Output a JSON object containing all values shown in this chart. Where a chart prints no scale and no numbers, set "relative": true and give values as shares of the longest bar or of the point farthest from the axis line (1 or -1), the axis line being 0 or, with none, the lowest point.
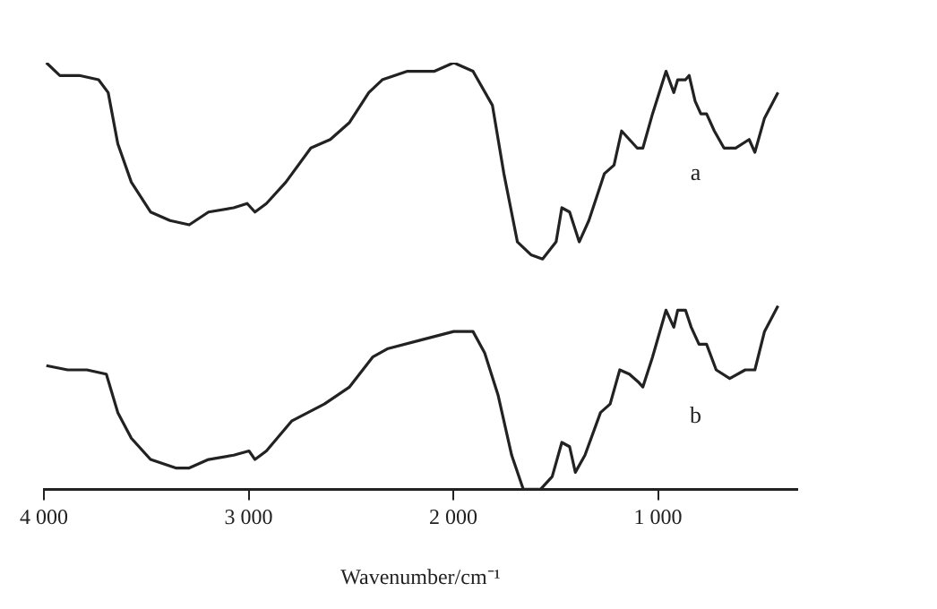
{
  "chart_data": {
    "type": "line",
    "relative": true,
    "xlabel": "Wavenumber/cm⁻¹",
    "xlim": [
      4000,
      320
    ],
    "xticks": [
      {
        "value": 4000,
        "label": "4 000"
      },
      {
        "value": 3000,
        "label": "3 000"
      },
      {
        "value": 2000,
        "label": "2 000"
      },
      {
        "value": 1000,
        "label": "1 000"
      }
    ],
    "grid": false,
    "legend": false,
    "marker": "none",
    "line_style": "solid",
    "series": [
      {
        "name": "a",
        "color": "#222222",
        "x": [
          3988,
          3922,
          3827,
          3733,
          3686,
          3639,
          3573,
          3479,
          3384,
          3290,
          3196,
          3073,
          3007,
          2969,
          2913,
          2818,
          2696,
          2601,
          2507,
          2413,
          2347,
          2224,
          2158,
          2092,
          1998,
          1904,
          1809,
          1753,
          1687,
          1621,
          1564,
          1498,
          1470,
          1432,
          1385,
          1338,
          1262,
          1215,
          1178,
          1140,
          1102,
          1074,
          1027,
          961,
          923,
          904,
          866,
          848,
          819,
          791,
          763,
          725,
          678,
          621,
          555,
          527,
          480,
          414
        ],
        "values": [
          1.0,
          0.97,
          0.97,
          0.96,
          0.93,
          0.81,
          0.72,
          0.65,
          0.63,
          0.62,
          0.65,
          0.66,
          0.67,
          0.65,
          0.67,
          0.72,
          0.8,
          0.82,
          0.86,
          0.93,
          0.96,
          0.98,
          0.98,
          0.98,
          1.0,
          0.98,
          0.9,
          0.74,
          0.58,
          0.55,
          0.54,
          0.58,
          0.66,
          0.65,
          0.58,
          0.63,
          0.74,
          0.76,
          0.84,
          0.82,
          0.8,
          0.8,
          0.88,
          0.98,
          0.93,
          0.96,
          0.96,
          0.97,
          0.91,
          0.88,
          0.88,
          0.84,
          0.8,
          0.8,
          0.82,
          0.79,
          0.87,
          0.93
        ]
      },
      {
        "name": "b",
        "color": "#222222",
        "x": [
          3988,
          3884,
          3790,
          3695,
          3639,
          3573,
          3479,
          3356,
          3290,
          3196,
          3073,
          2998,
          2969,
          2913,
          2790,
          2630,
          2507,
          2394,
          2319,
          2158,
          1998,
          1904,
          1847,
          1781,
          1715,
          1658,
          1574,
          1517,
          1470,
          1432,
          1404,
          1357,
          1281,
          1234,
          1187,
          1140,
          1093,
          1074,
          1027,
          961,
          923,
          904,
          866,
          838,
          800,
          763,
          716,
          650,
          574,
          527,
          480,
          414
        ],
        "values": [
          0.29,
          0.28,
          0.28,
          0.27,
          0.18,
          0.12,
          0.07,
          0.05,
          0.05,
          0.07,
          0.08,
          0.09,
          0.07,
          0.09,
          0.16,
          0.2,
          0.24,
          0.31,
          0.33,
          0.35,
          0.37,
          0.37,
          0.32,
          0.22,
          0.08,
          0.0,
          0.0,
          0.03,
          0.11,
          0.1,
          0.04,
          0.08,
          0.18,
          0.2,
          0.28,
          0.27,
          0.25,
          0.24,
          0.31,
          0.42,
          0.38,
          0.42,
          0.42,
          0.38,
          0.34,
          0.34,
          0.28,
          0.26,
          0.28,
          0.28,
          0.37,
          0.43
        ]
      }
    ]
  }
}
